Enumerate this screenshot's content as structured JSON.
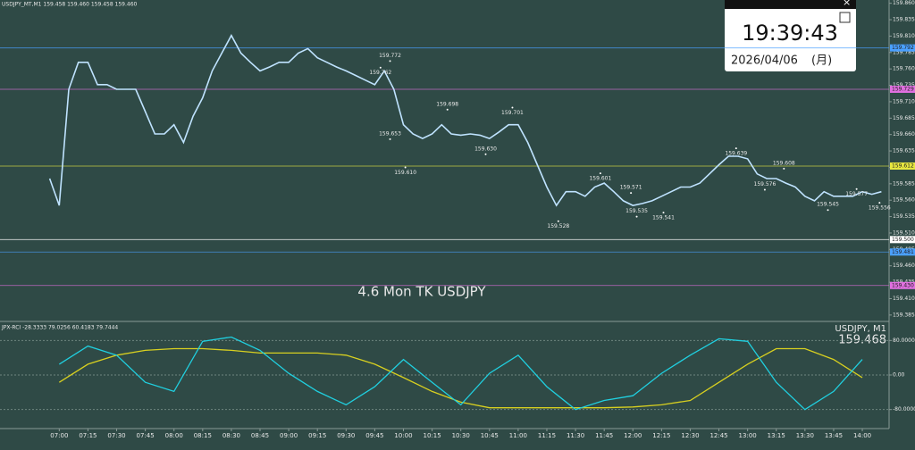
{
  "chart_data": [
    {
      "type": "line",
      "title": "USDJPY_MT,M1  159.458 159.460 159.458 159.460",
      "annotation": "4.6 Mon TK USDJPY",
      "last_price": 159.468,
      "xlim": [
        "06:29",
        "14:14"
      ],
      "xticks": [
        "07:00",
        "07:15",
        "07:30",
        "07:45",
        "08:00",
        "08:15",
        "08:30",
        "08:45",
        "09:00",
        "09:15",
        "09:30",
        "09:45",
        "10:00",
        "10:15",
        "10:30",
        "10:45",
        "11:00",
        "11:15",
        "11:30",
        "11:45",
        "12:00",
        "12:15",
        "12:30",
        "12:45",
        "13:00",
        "13:15",
        "13:30",
        "13:45",
        "14:00"
      ],
      "ylim": [
        159.378,
        159.865
      ],
      "yticks": [
        {
          "value": 159.86,
          "label": "159.860"
        },
        159.835,
        {
          "value": 159.81,
          "label": "159.810"
        },
        159.785,
        {
          "value": 159.76,
          "label": "159.760"
        },
        159.735,
        {
          "value": 159.71,
          "label": "159.710"
        },
        159.685,
        {
          "value": 159.66,
          "label": "159.660"
        },
        159.635,
        {
          "value": 159.61,
          "label": "159.610"
        },
        159.585,
        {
          "value": 159.56,
          "label": "159.560"
        },
        159.535,
        {
          "value": 159.51,
          "label": "159.510"
        },
        159.485,
        {
          "value": 159.46,
          "label": "159.460"
        },
        159.435,
        {
          "value": 159.41,
          "label": "159.410"
        },
        159.385
      ],
      "x": [
        "06:55",
        "07:00",
        "07:05",
        "07:10",
        "07:15",
        "07:20",
        "07:25",
        "07:30",
        "07:35",
        "07:40",
        "07:45",
        "07:50",
        "07:55",
        "08:00",
        "08:05",
        "08:10",
        "08:15",
        "08:20",
        "08:25",
        "08:30",
        "08:35",
        "08:40",
        "08:45",
        "08:50",
        "08:55",
        "09:00",
        "09:05",
        "09:10",
        "09:15",
        "09:20",
        "09:25",
        "09:30",
        "09:35",
        "09:40",
        "09:45",
        "09:50",
        "09:55",
        "10:00",
        "10:05",
        "10:10",
        "10:15",
        "10:20",
        "10:25",
        "10:30",
        "10:35",
        "10:40",
        "10:45",
        "10:50",
        "10:55",
        "11:00",
        "11:05",
        "11:10",
        "11:15",
        "11:20",
        "11:25",
        "11:30",
        "11:35",
        "11:40",
        "11:45",
        "11:50",
        "11:55",
        "12:00",
        "12:05",
        "12:10",
        "12:15",
        "12:20",
        "12:25",
        "12:30",
        "12:35",
        "12:40",
        "12:45",
        "12:50",
        "12:55",
        "13:00",
        "13:05",
        "13:10",
        "13:15",
        "13:20",
        "13:25",
        "13:30",
        "13:35",
        "13:40",
        "13:45",
        "13:50",
        "13:55",
        "14:00",
        "14:05",
        "14:10"
      ],
      "series": [
        {
          "name": "USDJPY, M1",
          "color": "#bfe3ff",
          "values": [
            159.593,
            159.552,
            159.729,
            159.77,
            159.77,
            159.736,
            159.736,
            159.729,
            159.729,
            159.729,
            159.695,
            159.661,
            159.661,
            159.675,
            159.648,
            159.688,
            159.716,
            159.757,
            159.784,
            159.811,
            159.784,
            159.77,
            159.757,
            159.763,
            159.77,
            159.77,
            159.784,
            159.791,
            159.777,
            159.77,
            159.763,
            159.757,
            159.75,
            159.743,
            159.736,
            159.757,
            159.729,
            159.675,
            159.661,
            159.654,
            159.661,
            159.675,
            159.661,
            159.659,
            159.661,
            159.659,
            159.654,
            159.664,
            159.675,
            159.675,
            159.648,
            159.614,
            159.58,
            159.552,
            159.573,
            159.573,
            159.566,
            159.58,
            159.586,
            159.573,
            159.559,
            159.552,
            159.555,
            159.559,
            159.566,
            159.573,
            159.58,
            159.58,
            159.586,
            159.6,
            159.614,
            159.627,
            159.627,
            159.623,
            159.6,
            159.593,
            159.593,
            159.586,
            159.58,
            159.566,
            159.559,
            159.573,
            159.566,
            159.566,
            159.566,
            159.573,
            159.569,
            159.573
          ]
        }
      ],
      "levels": [
        {
          "value": 159.792,
          "color": "#4aa0ff"
        },
        {
          "value": 159.729,
          "color": "#e070e0"
        },
        {
          "value": 159.612,
          "color": "#e8e840"
        },
        {
          "value": 159.5,
          "label": "159.500",
          "color": "#ffffff"
        },
        {
          "value": 159.481,
          "color": "#4aa0ff"
        },
        {
          "value": 159.43,
          "label": "159.430",
          "color": "#e070e0"
        }
      ],
      "extrema": {
        "x": [
          "09:53",
          "09:48",
          "10:23",
          "10:57",
          "09:53",
          "10:01",
          "10:43",
          "11:43",
          "11:59",
          "12:54",
          "13:19",
          "13:57",
          "13:09",
          "11:21",
          "12:02",
          "12:16",
          "13:42",
          "14:09"
        ],
        "values": [
          159.772,
          159.762,
          159.698,
          159.701,
          159.653,
          159.61,
          159.63,
          159.601,
          159.571,
          159.639,
          159.608,
          159.577,
          159.576,
          159.528,
          159.535,
          159.541,
          159.545,
          159.556
        ],
        "value_labels": [
          "159.772",
          "159.762",
          "159.698",
          "159.701",
          "159.653",
          "159.610",
          "159.630",
          "159.601",
          "159.571",
          "159.639",
          "159.608",
          "159.577",
          "159.576",
          "159.528",
          "159.535",
          "159.541",
          "159.545",
          "159.556"
        ]
      }
    },
    {
      "type": "line",
      "title": "JPX-RCI -28.3333 79.0256 60.4183 79.7444",
      "xlim": [
        "06:29",
        "14:14"
      ],
      "ylim": [
        -120,
        120
      ],
      "yticks": [
        {
          "value": 80,
          "label": "80.0000"
        },
        {
          "value": 0,
          "label": "0.00"
        },
        {
          "value": -80,
          "label": "-80.0000"
        }
      ],
      "x": [
        "07:00",
        "07:15",
        "07:30",
        "07:45",
        "08:00",
        "08:15",
        "08:30",
        "08:45",
        "09:00",
        "09:15",
        "09:30",
        "09:45",
        "10:00",
        "10:15",
        "10:30",
        "10:45",
        "11:00",
        "11:15",
        "11:30",
        "11:45",
        "12:00",
        "12:15",
        "12:30",
        "12:45",
        "13:00",
        "13:15",
        "13:30",
        "13:45",
        "14:00"
      ],
      "series": [
        {
          "color": "#d8d020",
          "values": [
            -17,
            25,
            46,
            57,
            61,
            61,
            57,
            51,
            51,
            51,
            46,
            25,
            -6,
            -38,
            -63,
            -76,
            -76,
            -76,
            -76,
            -76,
            -74,
            -69,
            -59,
            -17,
            25,
            61,
            61,
            36,
            -6
          ]
        },
        {
          "color": "#20d0e0",
          "values": [
            25,
            67,
            46,
            -17,
            -38,
            78,
            88,
            57,
            4,
            -38,
            -69,
            -27,
            36,
            -17,
            -69,
            4,
            46,
            -27,
            -80,
            -59,
            -48,
            4,
            46,
            84,
            78,
            -17,
            -80,
            -38,
            36
          ]
        }
      ]
    }
  ],
  "clock": {
    "time": "19:39:43",
    "date": "2026/04/06",
    "weekday": "(月)"
  }
}
